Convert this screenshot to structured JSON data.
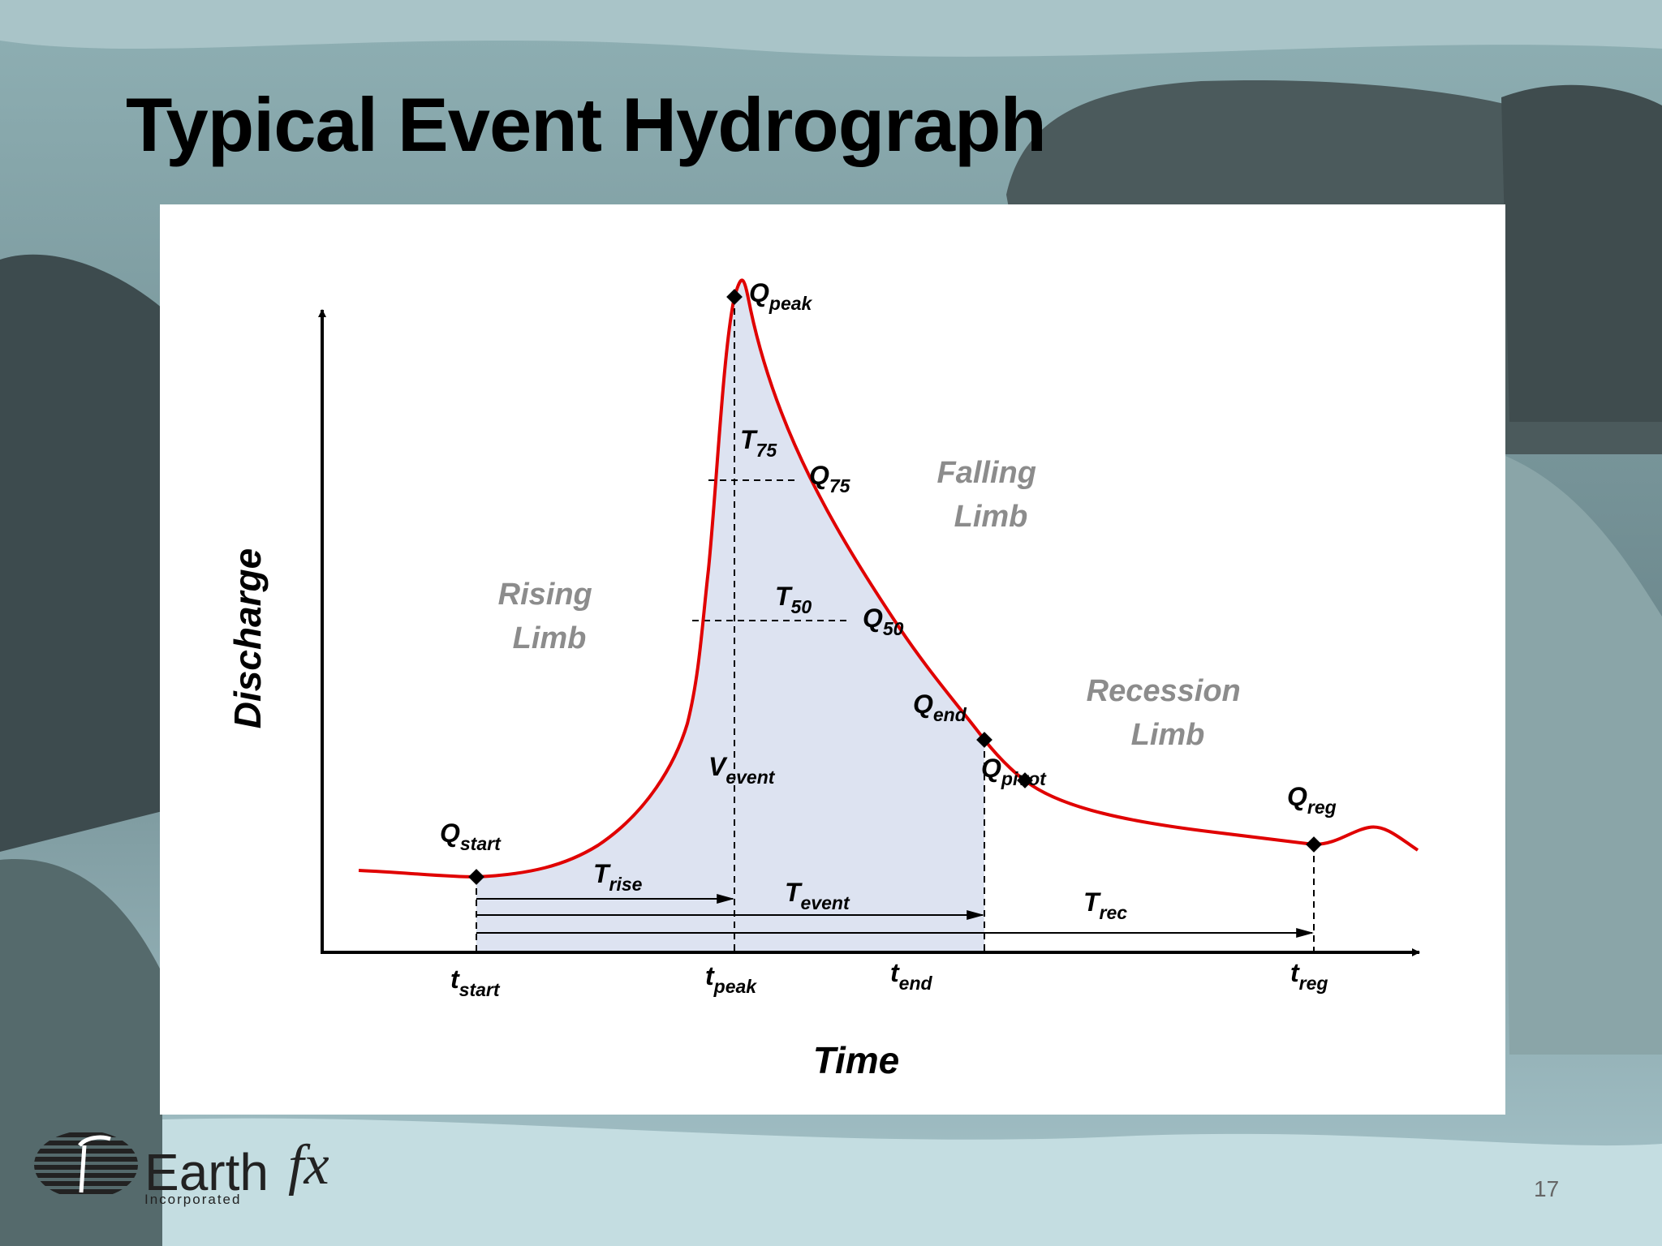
{
  "slide": {
    "title": "Typical Event Hydrograph",
    "page_number": "17"
  },
  "logo": {
    "word": "Earth",
    "fx": "fx",
    "incorporated": "Incorporated"
  },
  "diagram": {
    "axis_y_label": "Discharge",
    "axis_x_label": "Time",
    "regions": {
      "rising": [
        "Rising",
        "Limb"
      ],
      "falling": [
        "Falling",
        "Limb"
      ],
      "recession": [
        "Recession",
        "Limb"
      ]
    },
    "points": {
      "q_peak": {
        "main": "Q",
        "sub": "peak"
      },
      "q_75": {
        "main": "Q",
        "sub": "75"
      },
      "q_50": {
        "main": "Q",
        "sub": "50"
      },
      "q_end": {
        "main": "Q",
        "sub": "end"
      },
      "q_pivot": {
        "main": "Q",
        "sub": "pivot"
      },
      "q_start": {
        "main": "Q",
        "sub": "start"
      },
      "q_reg": {
        "main": "Q",
        "sub": "reg"
      }
    },
    "intervals": {
      "t_75": {
        "main": "T",
        "sub": "75"
      },
      "t_50": {
        "main": "T",
        "sub": "50"
      },
      "t_rise": {
        "main": "T",
        "sub": "rise"
      },
      "t_event": {
        "main": "T",
        "sub": "event"
      },
      "t_rec": {
        "main": "T",
        "sub": "rec"
      },
      "v_event": {
        "main": "V",
        "sub": "event"
      }
    },
    "time_ticks": {
      "t_start": {
        "main": "t",
        "sub": "start"
      },
      "t_peak": {
        "main": "t",
        "sub": "peak"
      },
      "t_end": {
        "main": "t",
        "sub": "end"
      },
      "t_reg": {
        "main": "t",
        "sub": "reg"
      }
    },
    "colors": {
      "curve": "#e00000",
      "fill": "#dde3f1",
      "region_label": "#8c8c8c"
    }
  }
}
